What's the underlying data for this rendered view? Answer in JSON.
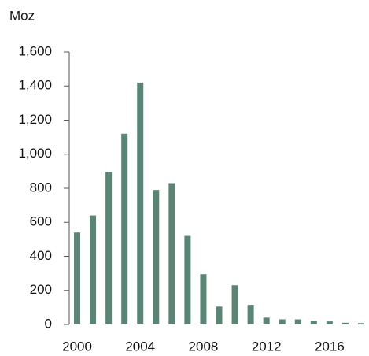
{
  "chart_data": {
    "type": "bar",
    "y_label": "Moz",
    "categories": [
      "2000",
      null,
      null,
      null,
      "2004",
      null,
      null,
      null,
      "2008",
      null,
      null,
      null,
      "2012",
      null,
      null,
      null,
      "2016",
      null,
      null
    ],
    "values": [
      540,
      640,
      895,
      1120,
      1420,
      790,
      830,
      520,
      295,
      105,
      230,
      115,
      40,
      30,
      30,
      20,
      18,
      10,
      8
    ],
    "color": "#5a8473",
    "ylim": [
      0,
      1600
    ],
    "yticks": [
      0,
      200,
      400,
      600,
      800,
      {
        "value": 1000,
        "label": "1,000"
      },
      {
        "value": 1200,
        "label": "1,200"
      },
      {
        "value": 1400,
        "label": "1,400"
      },
      {
        "value": 1600,
        "label": "1,600"
      }
    ],
    "grid": false
  }
}
